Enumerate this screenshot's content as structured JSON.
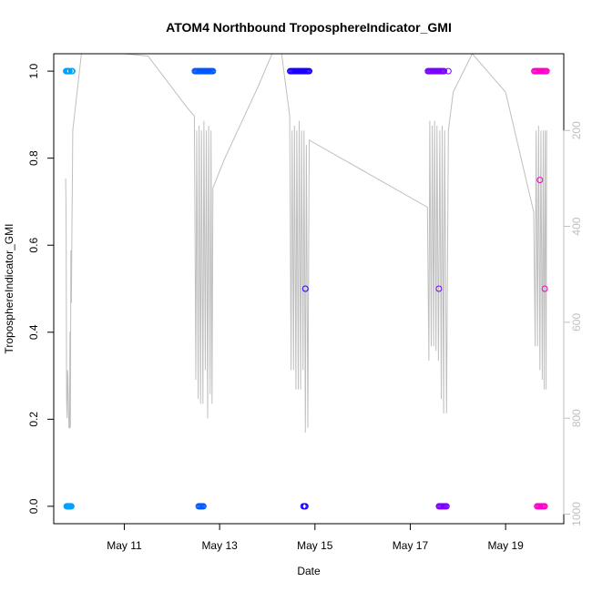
{
  "chart_data": {
    "type": "scatter",
    "title": "ATOM4 Northbound TroposphereIndicator_GMI",
    "xlabel": "Date",
    "ylabel": "TroposphereIndicator_GMI",
    "xlim": [
      9.52,
      20.22
    ],
    "ylim": [
      -0.04,
      1.04
    ],
    "x_ticks": [
      {
        "value": 11,
        "label": "May 11"
      },
      {
        "value": 13,
        "label": "May 13"
      },
      {
        "value": 15,
        "label": "May 15"
      },
      {
        "value": 17,
        "label": "May 17"
      },
      {
        "value": 19,
        "label": "May 19"
      }
    ],
    "y_ticks": [
      0.0,
      0.2,
      0.4,
      0.6,
      0.8,
      1.0
    ],
    "y_tick_labels": [
      "0.0",
      "0.2",
      "0.4",
      "0.6",
      "0.8",
      "1.0"
    ],
    "y2_ticks": [
      200,
      400,
      600,
      800,
      1000
    ],
    "y2_lim": [
      1020,
      40
    ],
    "grid": false,
    "secondary_color": "#bfbfbf",
    "flights": [
      {
        "color": "#00a2ff",
        "x_start": 9.78,
        "x_end": 9.92,
        "ones": [
          9.78,
          9.79,
          9.8,
          9.81,
          9.82,
          9.83,
          9.84,
          9.85,
          9.89,
          9.9,
          9.91
        ],
        "zeros": [
          9.79,
          9.8,
          9.81,
          9.82,
          9.83,
          9.84,
          9.85,
          9.86,
          9.87,
          9.88,
          9.89
        ],
        "mids": [],
        "pressure": [
          [
            9.77,
            300
          ],
          [
            9.78,
            390
          ],
          [
            9.79,
            760
          ],
          [
            9.8,
            800
          ],
          [
            9.81,
            700
          ],
          [
            9.82,
            720
          ],
          [
            9.83,
            780
          ],
          [
            9.84,
            820
          ],
          [
            9.85,
            820
          ],
          [
            9.86,
            620
          ],
          [
            9.87,
            820
          ],
          [
            9.88,
            450
          ],
          [
            9.89,
            560
          ],
          [
            9.9,
            420
          ],
          [
            9.91,
            320
          ],
          [
            9.92,
            200
          ]
        ]
      },
      {
        "color": "#0057ff",
        "x_start": 12.48,
        "x_end": 12.86,
        "ones": [
          12.48,
          12.5,
          12.52,
          12.54,
          12.56,
          12.58,
          12.6,
          12.62,
          12.64,
          12.66,
          12.68,
          12.7,
          12.72,
          12.74,
          12.76,
          12.78,
          12.8,
          12.82,
          12.84,
          12.86
        ],
        "zeros": [
          12.56,
          12.58,
          12.6,
          12.62,
          12.64,
          12.66
        ],
        "mids": [],
        "pressure": [
          [
            12.47,
            170
          ],
          [
            12.5,
            720
          ],
          [
            12.52,
            200
          ],
          [
            12.55,
            760
          ],
          [
            12.57,
            190
          ],
          [
            12.6,
            770
          ],
          [
            12.62,
            200
          ],
          [
            12.65,
            770
          ],
          [
            12.67,
            180
          ],
          [
            12.7,
            700
          ],
          [
            12.72,
            200
          ],
          [
            12.75,
            800
          ],
          [
            12.77,
            190
          ],
          [
            12.8,
            750
          ],
          [
            12.82,
            200
          ],
          [
            12.84,
            770
          ],
          [
            12.86,
            320
          ]
        ]
      },
      {
        "color": "#1a00ff",
        "x_start": 14.48,
        "x_end": 14.88,
        "ones": [
          14.48,
          14.5,
          14.52,
          14.54,
          14.56,
          14.58,
          14.6,
          14.62,
          14.64,
          14.66,
          14.68,
          14.7,
          14.72,
          14.74,
          14.76,
          14.78,
          14.8,
          14.82,
          14.84,
          14.86,
          14.88
        ],
        "zeros": [
          14.76,
          14.78,
          14.8
        ],
        "mids": [
          {
            "x": 14.8,
            "y": 0.5
          }
        ],
        "pressure": [
          [
            14.47,
            170
          ],
          [
            14.5,
            700
          ],
          [
            14.52,
            200
          ],
          [
            14.55,
            700
          ],
          [
            14.57,
            190
          ],
          [
            14.6,
            740
          ],
          [
            14.62,
            200
          ],
          [
            14.65,
            740
          ],
          [
            14.67,
            180
          ],
          [
            14.7,
            740
          ],
          [
            14.72,
            200
          ],
          [
            14.75,
            700
          ],
          [
            14.77,
            200
          ],
          [
            14.8,
            830
          ],
          [
            14.82,
            230
          ],
          [
            14.85,
            820
          ],
          [
            14.88,
            220
          ]
        ]
      },
      {
        "color": "#7a00ff",
        "x_start": 17.37,
        "x_end": 17.8,
        "ones": [
          17.37,
          17.39,
          17.41,
          17.43,
          17.45,
          17.47,
          17.49,
          17.51,
          17.53,
          17.55,
          17.57,
          17.59,
          17.61,
          17.63,
          17.65,
          17.67,
          17.69,
          17.71,
          17.8
        ],
        "zeros": [
          17.6,
          17.62,
          17.64,
          17.66,
          17.68,
          17.7,
          17.72,
          17.74,
          17.76
        ],
        "mids": [
          {
            "x": 17.6,
            "y": 0.5
          }
        ],
        "pressure": [
          [
            17.36,
            360
          ],
          [
            17.39,
            680
          ],
          [
            17.41,
            180
          ],
          [
            17.44,
            650
          ],
          [
            17.46,
            190
          ],
          [
            17.49,
            650
          ],
          [
            17.51,
            180
          ],
          [
            17.54,
            660
          ],
          [
            17.56,
            190
          ],
          [
            17.59,
            680
          ],
          [
            17.62,
            200
          ],
          [
            17.65,
            760
          ],
          [
            17.67,
            190
          ],
          [
            17.7,
            790
          ],
          [
            17.72,
            200
          ],
          [
            17.76,
            790
          ],
          [
            17.8,
            200
          ]
        ]
      },
      {
        "color": "#ff00c8",
        "x_start": 19.6,
        "x_end": 19.86,
        "ones": [
          19.6,
          19.62,
          19.64,
          19.66,
          19.68,
          19.7,
          19.72,
          19.74,
          19.76,
          19.78,
          19.8,
          19.82,
          19.84,
          19.86
        ],
        "zeros": [
          19.66,
          19.68,
          19.7,
          19.72,
          19.74,
          19.76,
          19.78,
          19.8,
          19.82
        ],
        "mids": [
          {
            "x": 19.72,
            "y": 0.75
          },
          {
            "x": 19.82,
            "y": 0.5
          }
        ],
        "pressure": [
          [
            19.59,
            370
          ],
          [
            19.62,
            650
          ],
          [
            19.64,
            200
          ],
          [
            19.67,
            650
          ],
          [
            19.69,
            190
          ],
          [
            19.72,
            700
          ],
          [
            19.74,
            200
          ],
          [
            19.77,
            720
          ],
          [
            19.79,
            200
          ],
          [
            19.81,
            740
          ],
          [
            19.83,
            200
          ],
          [
            19.85,
            740
          ],
          [
            19.86,
            200
          ]
        ]
      }
    ],
    "transit_pressure": [
      [
        9.92,
        200
      ],
      [
        10.1,
        40
      ],
      [
        11.0,
        40
      ],
      [
        11.5,
        45
      ],
      [
        12.3,
        150
      ],
      [
        12.47,
        170
      ],
      [
        12.86,
        320
      ],
      [
        13.1,
        260
      ],
      [
        13.8,
        110
      ],
      [
        14.1,
        40
      ],
      [
        14.3,
        40
      ],
      [
        14.47,
        170
      ],
      [
        14.88,
        220
      ],
      [
        17.36,
        360
      ],
      [
        17.8,
        200
      ],
      [
        17.9,
        120
      ],
      [
        18.3,
        40
      ],
      [
        19.0,
        120
      ],
      [
        19.59,
        370
      ]
    ]
  }
}
